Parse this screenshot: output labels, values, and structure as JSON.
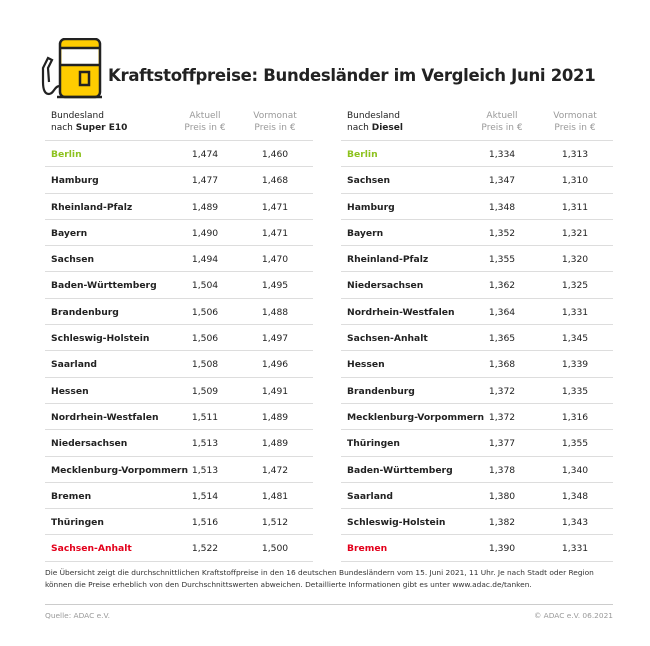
{
  "title": "Kraftstoffpreise: Bundesländer im Vergleich Juni 2021",
  "colors": {
    "best": "#8dc21f",
    "worst": "#e3001b",
    "icon_yellow": "#ffcc00"
  },
  "icon": "fuel-pump-icon",
  "left": {
    "header": {
      "line1": "Bundesland",
      "prefix": "nach ",
      "fuel": "Super E10",
      "aktuell1": "Aktuell",
      "aktuell2": "Preis in €",
      "vormonat1": "Vormonat",
      "vormonat2": "Preis in €"
    },
    "rows": [
      {
        "name": "Berlin",
        "aktuell": "1,474",
        "vormonat": "1,460",
        "status": "best"
      },
      {
        "name": "Hamburg",
        "aktuell": "1,477",
        "vormonat": "1,468"
      },
      {
        "name": "Rheinland-Pfalz",
        "aktuell": "1,489",
        "vormonat": "1,471"
      },
      {
        "name": "Bayern",
        "aktuell": "1,490",
        "vormonat": "1,471"
      },
      {
        "name": "Sachsen",
        "aktuell": "1,494",
        "vormonat": "1,470"
      },
      {
        "name": "Baden-Württemberg",
        "aktuell": "1,504",
        "vormonat": "1,495"
      },
      {
        "name": "Brandenburg",
        "aktuell": "1,506",
        "vormonat": "1,488"
      },
      {
        "name": "Schleswig-Holstein",
        "aktuell": "1,506",
        "vormonat": "1,497"
      },
      {
        "name": "Saarland",
        "aktuell": "1,508",
        "vormonat": "1,496"
      },
      {
        "name": "Hessen",
        "aktuell": "1,509",
        "vormonat": "1,491"
      },
      {
        "name": "Nordrhein-Westfalen",
        "aktuell": "1,511",
        "vormonat": "1,489"
      },
      {
        "name": "Niedersachsen",
        "aktuell": "1,513",
        "vormonat": "1,489"
      },
      {
        "name": "Mecklenburg-Vorpommern",
        "aktuell": "1,513",
        "vormonat": "1,472"
      },
      {
        "name": "Bremen",
        "aktuell": "1,514",
        "vormonat": "1,481"
      },
      {
        "name": "Thüringen",
        "aktuell": "1,516",
        "vormonat": "1,512"
      },
      {
        "name": "Sachsen-Anhalt",
        "aktuell": "1,522",
        "vormonat": "1,500",
        "status": "worst"
      }
    ]
  },
  "right": {
    "header": {
      "line1": "Bundesland",
      "prefix": "nach ",
      "fuel": "Diesel",
      "aktuell1": "Aktuell",
      "aktuell2": "Preis in €",
      "vormonat1": "Vormonat",
      "vormonat2": "Preis in €"
    },
    "rows": [
      {
        "name": "Berlin",
        "aktuell": "1,334",
        "vormonat": "1,313",
        "status": "best"
      },
      {
        "name": "Sachsen",
        "aktuell": "1,347",
        "vormonat": "1,310"
      },
      {
        "name": "Hamburg",
        "aktuell": "1,348",
        "vormonat": "1,311"
      },
      {
        "name": "Bayern",
        "aktuell": "1,352",
        "vormonat": "1,321"
      },
      {
        "name": "Rheinland-Pfalz",
        "aktuell": "1,355",
        "vormonat": "1,320"
      },
      {
        "name": "Niedersachsen",
        "aktuell": "1,362",
        "vormonat": "1,325"
      },
      {
        "name": "Nordrhein-Westfalen",
        "aktuell": "1,364",
        "vormonat": "1,331"
      },
      {
        "name": "Sachsen-Anhalt",
        "aktuell": "1,365",
        "vormonat": "1,345"
      },
      {
        "name": "Hessen",
        "aktuell": "1,368",
        "vormonat": "1,339"
      },
      {
        "name": "Brandenburg",
        "aktuell": "1,372",
        "vormonat": "1,335"
      },
      {
        "name": "Mecklenburg-Vorpommern",
        "aktuell": "1,372",
        "vormonat": "1,316"
      },
      {
        "name": "Thüringen",
        "aktuell": "1,377",
        "vormonat": "1,355"
      },
      {
        "name": "Baden-Württemberg",
        "aktuell": "1,378",
        "vormonat": "1,340"
      },
      {
        "name": "Saarland",
        "aktuell": "1,380",
        "vormonat": "1,348"
      },
      {
        "name": "Schleswig-Holstein",
        "aktuell": "1,382",
        "vormonat": "1,343"
      },
      {
        "name": "Bremen",
        "aktuell": "1,390",
        "vormonat": "1,331",
        "status": "worst"
      }
    ]
  },
  "footnote": "Die Übersicht zeigt die durchschnittlichen Kraftstoffpreise in den 16 deutschen Bundesländern vom 15. Juni 2021, 11 Uhr. Je nach Stadt oder Region können die Preise erheblich von den Durchschnittswerten abweichen. Detaillierte Informationen gibt es unter www.adac.de/tanken.",
  "source": "Quelle: ADAC e.V.",
  "copyright": "© ADAC e.V. 06.2021"
}
